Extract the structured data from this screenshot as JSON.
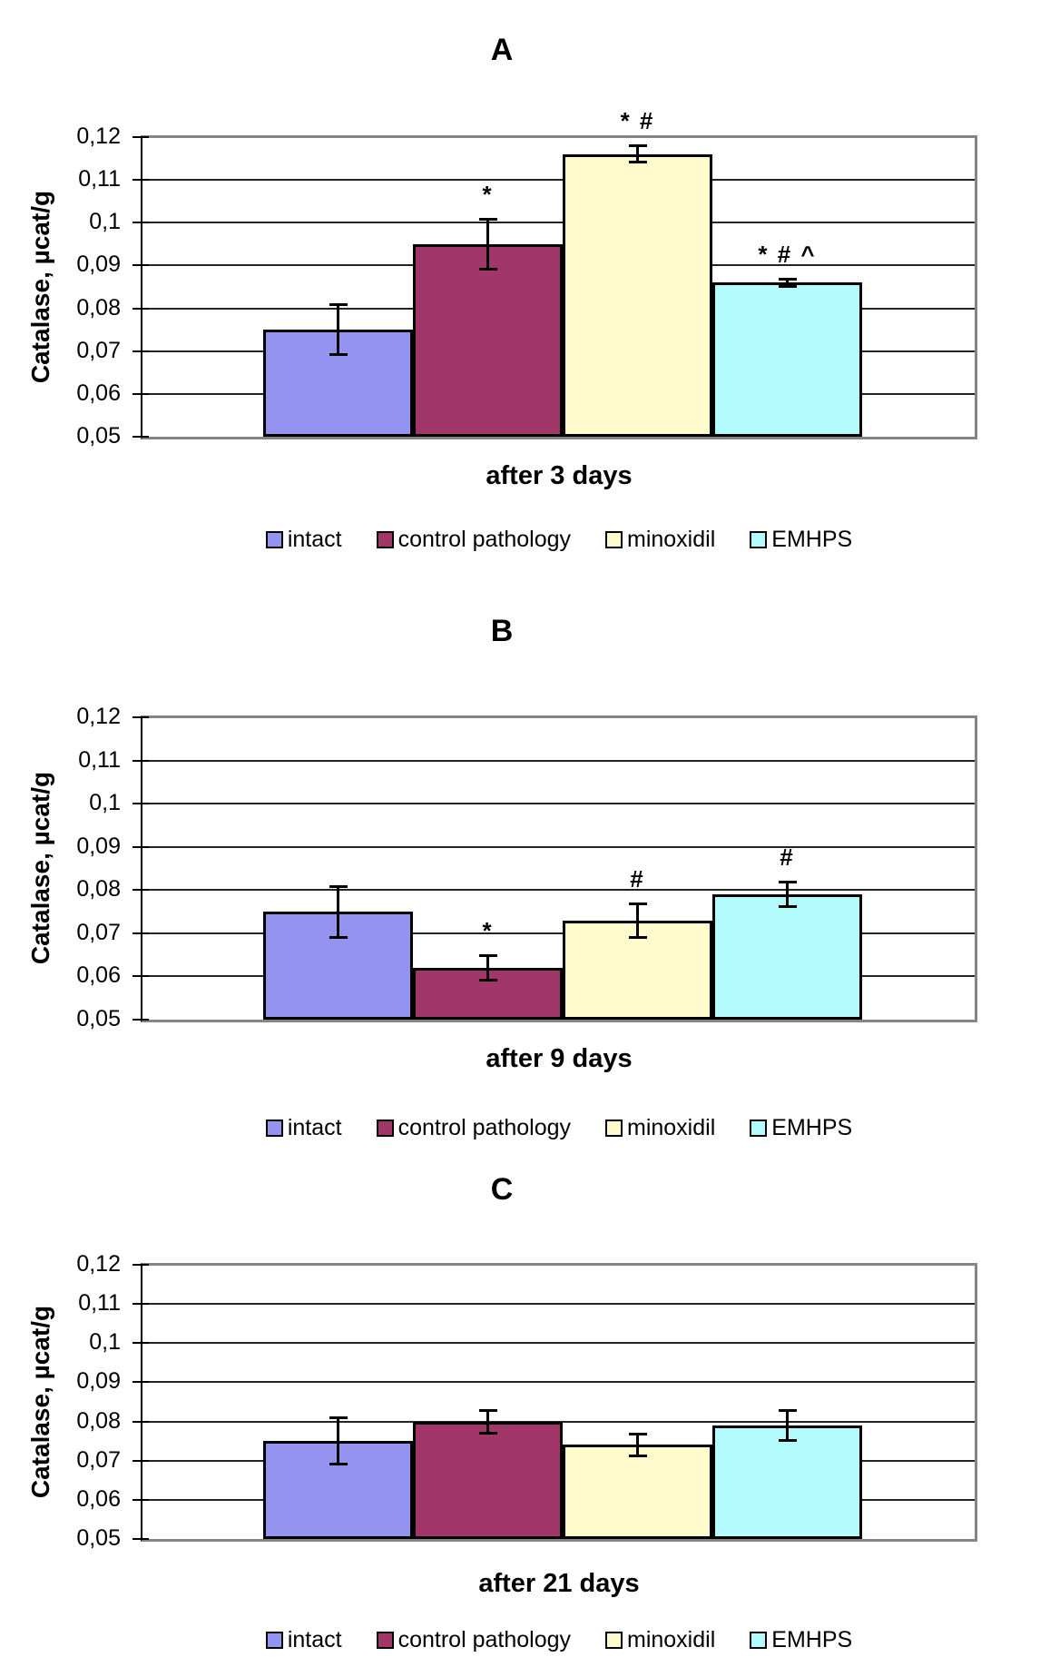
{
  "figure": {
    "ylabel": "Catalase, µcat/g",
    "series": [
      {
        "name": "intact",
        "color": "#9494F0"
      },
      {
        "name": "control pathology",
        "color": "#A13768"
      },
      {
        "name": "minoxidil",
        "color": "#FFFBCC"
      },
      {
        "name": "EMHPS",
        "color": "#B3FBFD"
      }
    ]
  },
  "chart_data": [
    {
      "type": "bar",
      "title": "A",
      "xlabel": "after 3 days",
      "ylabel": "Catalase, µcat/g",
      "categories": [
        "intact",
        "control pathology",
        "minoxidil",
        "EMHPS"
      ],
      "values": [
        0.075,
        0.095,
        0.116,
        0.086
      ],
      "error_bars": [
        0.006,
        0.006,
        0.002,
        0.001
      ],
      "significance": [
        "",
        "*",
        "* #",
        "* # ^"
      ],
      "ylim": [
        0.05,
        0.12
      ],
      "ytick_labels": [
        "0,05",
        "0,06",
        "0,07",
        "0,08",
        "0,09",
        "0,1",
        "0,11",
        "0,12"
      ],
      "grid": "horizontal",
      "legend_position": "bottom"
    },
    {
      "type": "bar",
      "title": "B",
      "xlabel": "after 9 days",
      "ylabel": "Catalase, µcat/g",
      "categories": [
        "intact",
        "control pathology",
        "minoxidil",
        "EMHPS"
      ],
      "values": [
        0.075,
        0.062,
        0.073,
        0.079
      ],
      "error_bars": [
        0.006,
        0.003,
        0.004,
        0.003
      ],
      "significance": [
        "",
        "*",
        "#",
        "#"
      ],
      "ylim": [
        0.05,
        0.12
      ],
      "ytick_labels": [
        "0,05",
        "0,06",
        "0,07",
        "0,08",
        "0,09",
        "0,1",
        "0,11",
        "0,12"
      ],
      "grid": "horizontal",
      "legend_position": "bottom"
    },
    {
      "type": "bar",
      "title": "C",
      "xlabel": "after 21 days",
      "ylabel": "Catalase, µcat/g",
      "categories": [
        "intact",
        "control pathology",
        "minoxidil",
        "EMHPS"
      ],
      "values": [
        0.075,
        0.08,
        0.074,
        0.079
      ],
      "error_bars": [
        0.006,
        0.003,
        0.003,
        0.004
      ],
      "significance": [
        "",
        "",
        "",
        ""
      ],
      "ylim": [
        0.05,
        0.12
      ],
      "ytick_labels": [
        "0,05",
        "0,06",
        "0,07",
        "0,08",
        "0,09",
        "0,1",
        "0,11",
        "0,12"
      ],
      "grid": "horizontal",
      "legend_position": "bottom"
    }
  ]
}
